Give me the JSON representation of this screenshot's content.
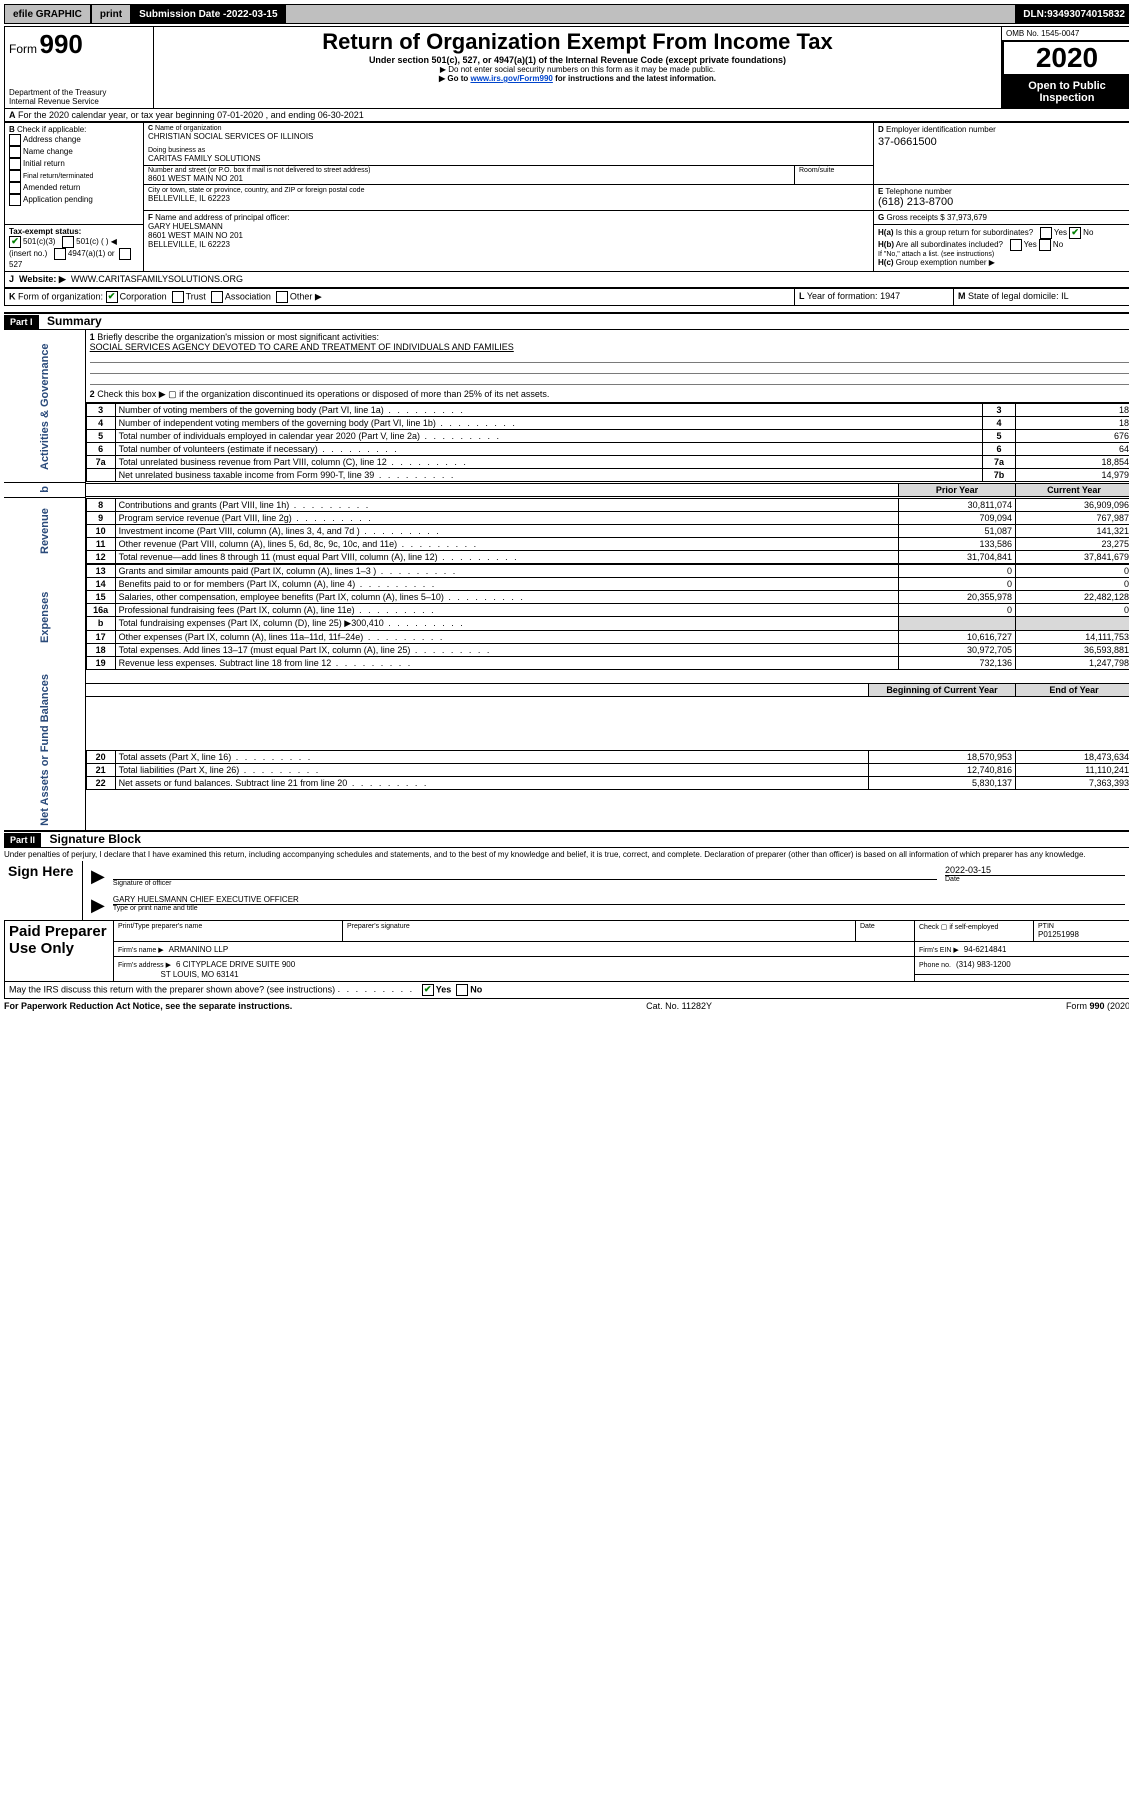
{
  "topbar": {
    "efile": "efile GRAPHIC",
    "print": "print",
    "subdate_label": "Submission Date - ",
    "subdate": "2022-03-15",
    "dln_label": "DLN: ",
    "dln": "93493074015832"
  },
  "header": {
    "form_no": "990",
    "form_word": "Form",
    "title": "Return of Organization Exempt From Income Tax",
    "subtitle": "Under section 501(c), 527, or 4947(a)(1) of the Internal Revenue Code (except private foundations)",
    "note1": "▶ Do not enter social security numbers on this form as it may be made public.",
    "note2_pre": "▶ Go to ",
    "note2_link": "www.irs.gov/Form990",
    "note2_post": " for instructions and the latest information.",
    "dept": "Department of the Treasury",
    "irs": "Internal Revenue Service",
    "omb": "OMB No. 1545-0047",
    "year": "2020",
    "open": "Open to Public Inspection"
  },
  "lineA": "For the 2020 calendar year, or tax year beginning 07-01-2020   , and ending 06-30-2021",
  "boxB": {
    "label": "Check if applicable:",
    "items": [
      "Address change",
      "Name change",
      "Initial return",
      "Final return/terminated",
      "Amended return",
      "Application pending"
    ]
  },
  "boxC": {
    "name_lbl": "Name of organization",
    "name": "CHRISTIAN SOCIAL SERVICES OF ILLINOIS",
    "dba_lbl": "Doing business as",
    "dba": "CARITAS FAMILY SOLUTIONS",
    "addr_lbl": "Number and street (or P.O. box if mail is not delivered to street address)",
    "room_lbl": "Room/suite",
    "addr": "8601 WEST MAIN NO 201",
    "city_lbl": "City or town, state or province, country, and ZIP or foreign postal code",
    "city": "BELLEVILLE, IL  62223"
  },
  "boxD": {
    "lbl": "Employer identification number",
    "val": "37-0661500"
  },
  "boxE": {
    "lbl": "Telephone number",
    "val": "(618) 213-8700"
  },
  "boxG": {
    "lbl": "Gross receipts $",
    "val": "37,973,679"
  },
  "boxF": {
    "lbl": "Name and address of principal officer:",
    "name": "GARY HUELSMANN",
    "addr1": "8601 WEST MAIN NO 201",
    "addr2": "BELLEVILLE, IL  62223"
  },
  "boxH": {
    "ha": "Is this a group return for subordinates?",
    "hb": "Are all subordinates included?",
    "hb_note": "If \"No,\" attach a list. (see instructions)",
    "hc": "Group exemption number ▶"
  },
  "boxI": {
    "lbl": "Tax-exempt status:",
    "o1": "501(c)(3)",
    "o2": "501(c) (   ) ◀ (insert no.)",
    "o3": "4947(a)(1) or",
    "o4": "527"
  },
  "boxJ": {
    "lbl": "Website: ▶",
    "val": "WWW.CARITASFAMILYSOLUTIONS.ORG"
  },
  "boxK": {
    "lbl": "Form of organization:",
    "o1": "Corporation",
    "o2": "Trust",
    "o3": "Association",
    "o4": "Other ▶"
  },
  "boxL": {
    "lbl": "Year of formation:",
    "val": "1947"
  },
  "boxM": {
    "lbl": "State of legal domicile:",
    "val": "IL"
  },
  "part1": {
    "hdr": "Part I",
    "title": "Summary",
    "l1_lbl": "Briefly describe the organization's mission or most significant activities:",
    "l1_val": "SOCIAL SERVICES AGENCY DEVOTED TO CARE AND TREATMENT OF INDIVIDUALS AND FAMILIES",
    "l2": "Check this box ▶ ▢ if the organization discontinued its operations or disposed of more than 25% of its net assets.",
    "rows_gov": [
      {
        "n": "3",
        "d": "Number of voting members of the governing body (Part VI, line 1a)",
        "k": "3",
        "v": "18"
      },
      {
        "n": "4",
        "d": "Number of independent voting members of the governing body (Part VI, line 1b)",
        "k": "4",
        "v": "18"
      },
      {
        "n": "5",
        "d": "Total number of individuals employed in calendar year 2020 (Part V, line 2a)",
        "k": "5",
        "v": "676"
      },
      {
        "n": "6",
        "d": "Total number of volunteers (estimate if necessary)",
        "k": "6",
        "v": "64"
      },
      {
        "n": "7a",
        "d": "Total unrelated business revenue from Part VIII, column (C), line 12",
        "k": "7a",
        "v": "18,854"
      },
      {
        "n": "",
        "d": "Net unrelated business taxable income from Form 990-T, line 39",
        "k": "7b",
        "v": "14,979"
      }
    ],
    "col_prior": "Prior Year",
    "col_curr": "Current Year",
    "rows_rev": [
      {
        "n": "8",
        "d": "Contributions and grants (Part VIII, line 1h)",
        "p": "30,811,074",
        "c": "36,909,096"
      },
      {
        "n": "9",
        "d": "Program service revenue (Part VIII, line 2g)",
        "p": "709,094",
        "c": "767,987"
      },
      {
        "n": "10",
        "d": "Investment income (Part VIII, column (A), lines 3, 4, and 7d )",
        "p": "51,087",
        "c": "141,321"
      },
      {
        "n": "11",
        "d": "Other revenue (Part VIII, column (A), lines 5, 6d, 8c, 9c, 10c, and 11e)",
        "p": "133,586",
        "c": "23,275"
      },
      {
        "n": "12",
        "d": "Total revenue—add lines 8 through 11 (must equal Part VIII, column (A), line 12)",
        "p": "31,704,841",
        "c": "37,841,679"
      }
    ],
    "rows_exp": [
      {
        "n": "13",
        "d": "Grants and similar amounts paid (Part IX, column (A), lines 1–3 )",
        "p": "0",
        "c": "0"
      },
      {
        "n": "14",
        "d": "Benefits paid to or for members (Part IX, column (A), line 4)",
        "p": "0",
        "c": "0"
      },
      {
        "n": "15",
        "d": "Salaries, other compensation, employee benefits (Part IX, column (A), lines 5–10)",
        "p": "20,355,978",
        "c": "22,482,128"
      },
      {
        "n": "16a",
        "d": "Professional fundraising fees (Part IX, column (A), line 11e)",
        "p": "0",
        "c": "0"
      },
      {
        "n": "b",
        "d": "Total fundraising expenses (Part IX, column (D), line 25) ▶300,410",
        "p": "",
        "c": "",
        "shade": true
      },
      {
        "n": "17",
        "d": "Other expenses (Part IX, column (A), lines 11a–11d, 11f–24e)",
        "p": "10,616,727",
        "c": "14,111,753"
      },
      {
        "n": "18",
        "d": "Total expenses. Add lines 13–17 (must equal Part IX, column (A), line 25)",
        "p": "30,972,705",
        "c": "36,593,881"
      },
      {
        "n": "19",
        "d": "Revenue less expenses. Subtract line 18 from line 12",
        "p": "732,136",
        "c": "1,247,798"
      }
    ],
    "col_beg": "Beginning of Current Year",
    "col_end": "End of Year",
    "rows_net": [
      {
        "n": "20",
        "d": "Total assets (Part X, line 16)",
        "p": "18,570,953",
        "c": "18,473,634"
      },
      {
        "n": "21",
        "d": "Total liabilities (Part X, line 26)",
        "p": "12,740,816",
        "c": "11,110,241"
      },
      {
        "n": "22",
        "d": "Net assets or fund balances. Subtract line 21 from line 20",
        "p": "5,830,137",
        "c": "7,363,393"
      }
    ],
    "vlabels": {
      "gov": "Activities & Governance",
      "rev": "Revenue",
      "exp": "Expenses",
      "net": "Net Assets or Fund Balances"
    }
  },
  "part2": {
    "hdr": "Part II",
    "title": "Signature Block",
    "decl": "Under penalties of perjury, I declare that I have examined this return, including accompanying schedules and statements, and to the best of my knowledge and belief, it is true, correct, and complete. Declaration of preparer (other than officer) is based on all information of which preparer has any knowledge.",
    "sign_here": "Sign Here",
    "sig_officer": "Signature of officer",
    "date_lbl": "Date",
    "date": "2022-03-15",
    "officer_name": "GARY HUELSMANN  CHIEF EXECUTIVE OFFICER",
    "type_name": "Type or print name and title",
    "paid": "Paid Preparer Use Only",
    "pp_name_lbl": "Print/Type preparer's name",
    "pp_sig_lbl": "Preparer's signature",
    "pp_date_lbl": "Date",
    "pp_check": "Check ▢ if self-employed",
    "ptin_lbl": "PTIN",
    "ptin": "P01251998",
    "firm_name_lbl": "Firm's name   ▶",
    "firm_name": "ARMANINO LLP",
    "firm_ein_lbl": "Firm's EIN ▶",
    "firm_ein": "94-6214841",
    "firm_addr_lbl": "Firm's address ▶",
    "firm_addr1": "6 CITYPLACE DRIVE SUITE 900",
    "firm_addr2": "ST LOUIS, MO  63141",
    "phone_lbl": "Phone no.",
    "phone": "(314) 983-1200",
    "discuss": "May the IRS discuss this return with the preparer shown above? (see instructions)",
    "yes": "Yes",
    "no": "No"
  },
  "footer": {
    "left": "For Paperwork Reduction Act Notice, see the separate instructions.",
    "mid": "Cat. No. 11282Y",
    "right": "Form 990 (2020)"
  }
}
